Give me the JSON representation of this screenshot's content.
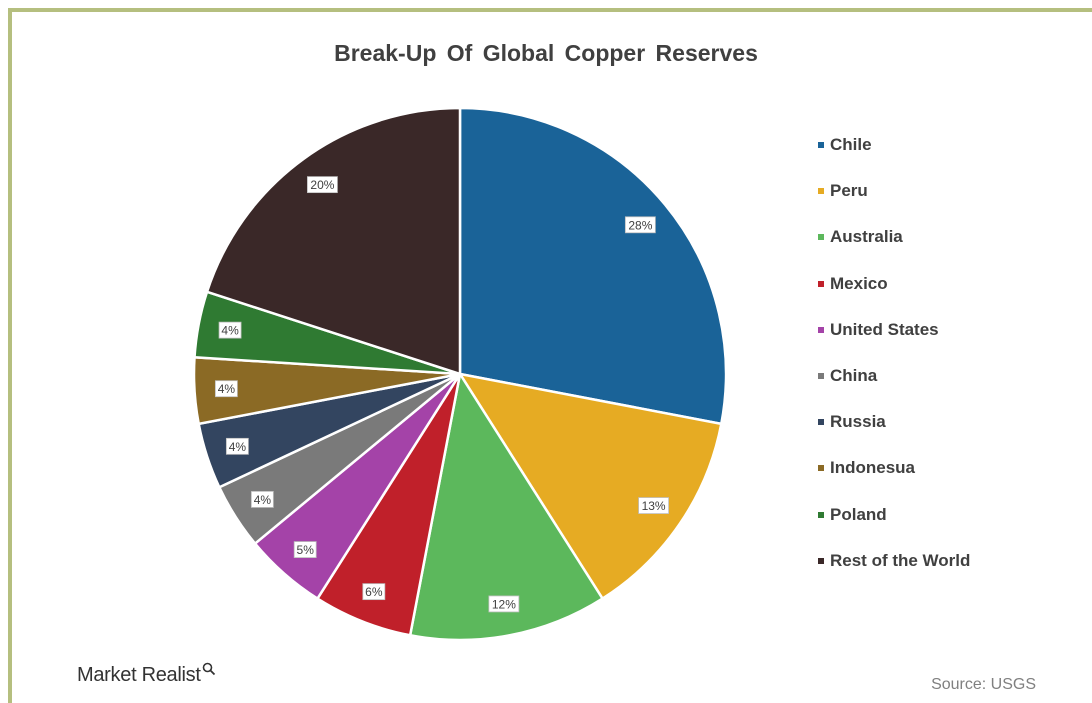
{
  "brand": {
    "name": "Market Realist"
  },
  "source": "Source: USGS",
  "colors": {
    "frame": "#b5bf7f"
  },
  "chart_data": {
    "type": "pie",
    "title": "Break-Up Of Global Copper Reserves",
    "legend_position": "right",
    "categories": [
      "Chile",
      "Peru",
      "Australia",
      "Mexico",
      "United States",
      "China",
      "Russia",
      "Indonesua",
      "Poland",
      "Rest of the World"
    ],
    "values": [
      28,
      13,
      12,
      6,
      5,
      4,
      4,
      4,
      4,
      20
    ],
    "labels": [
      "28%",
      "13%",
      "12%",
      "6%",
      "5%",
      "4%",
      "4%",
      "4%",
      "4%",
      "20%"
    ],
    "colors": [
      "#1a6398",
      "#e6ab23",
      "#5cb85c",
      "#c0202a",
      "#a443a8",
      "#7a7a7a",
      "#334560",
      "#8b6a25",
      "#2f7a32",
      "#3a2828"
    ]
  }
}
